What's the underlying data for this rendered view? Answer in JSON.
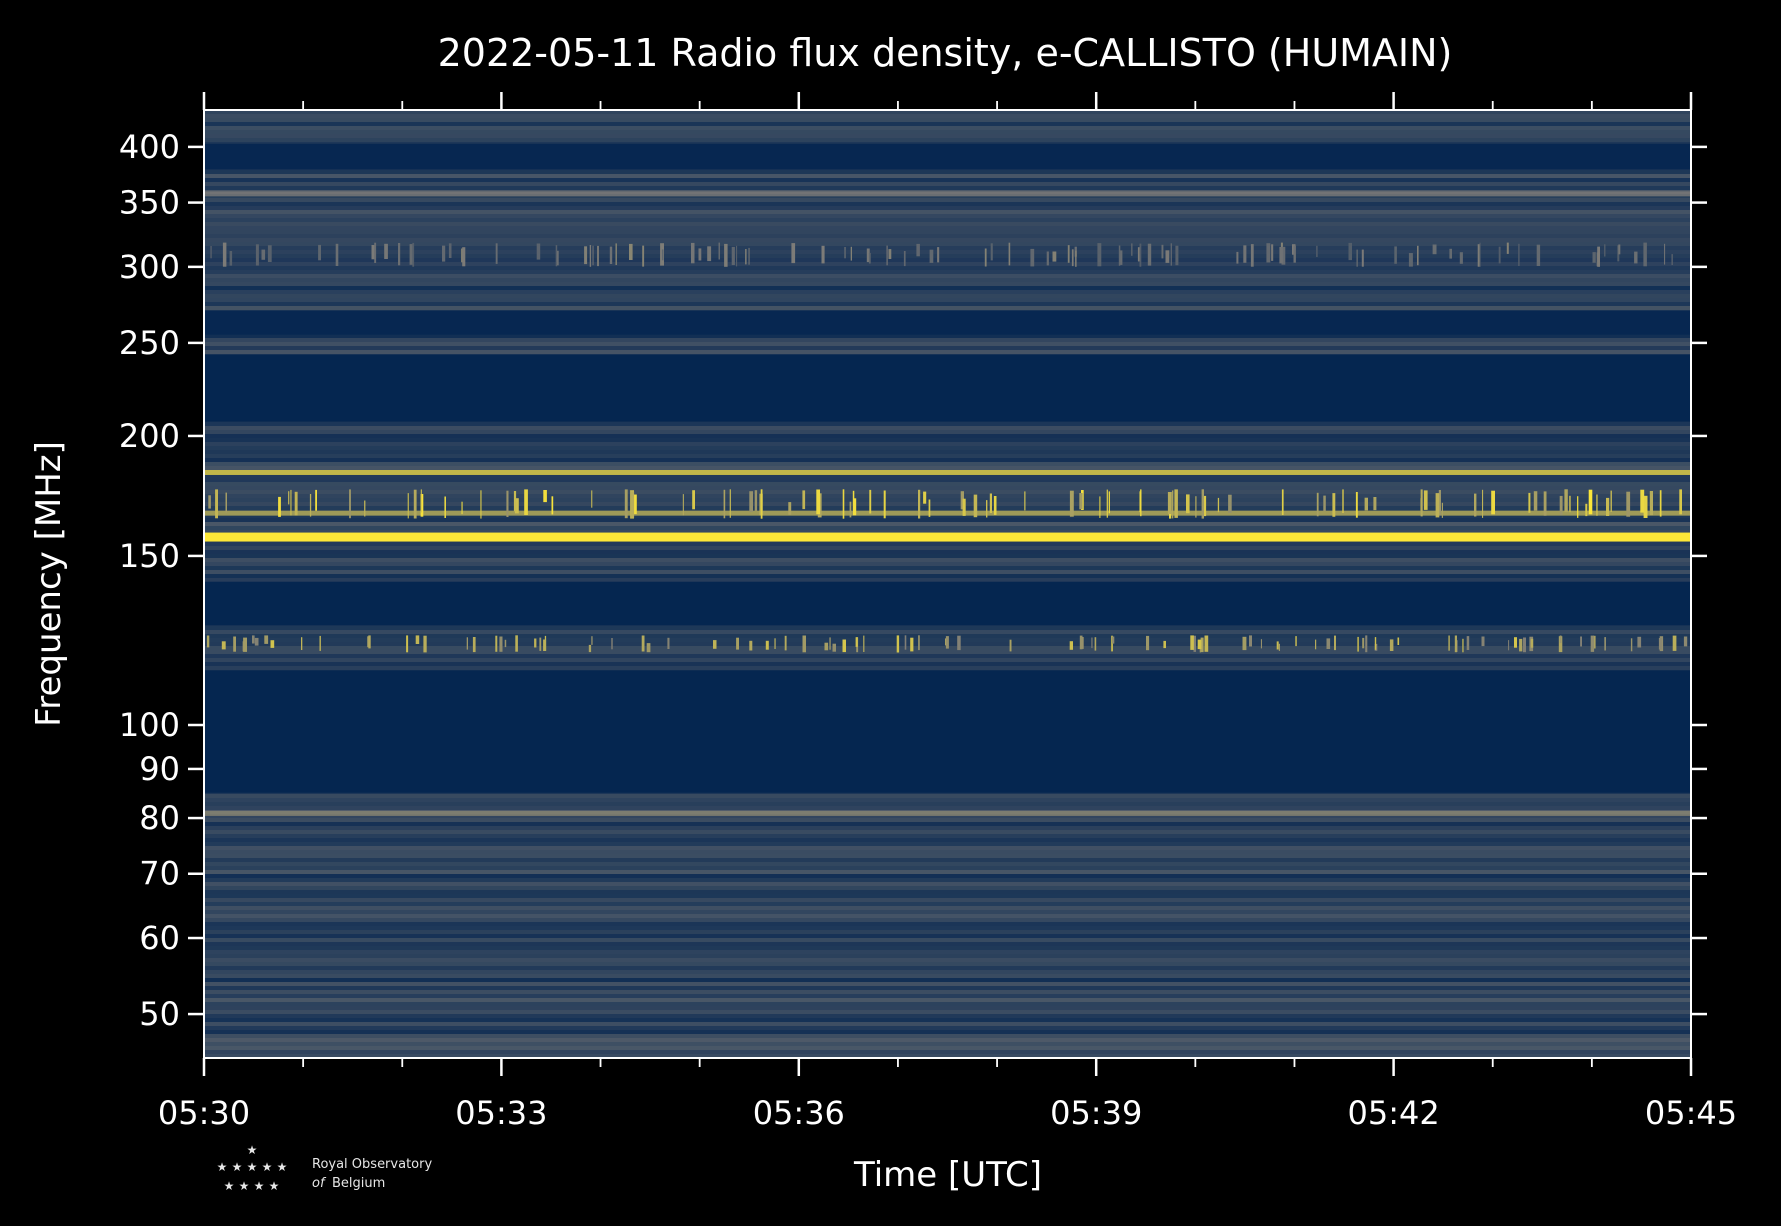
{
  "chart_data": {
    "type": "heatmap",
    "title": "2022-05-11 Radio flux density, e-CALLISTO (HUMAIN)",
    "xlabel": "Time [UTC]",
    "ylabel": "Frequency [MHz]",
    "x_ticks": [
      "05:30",
      "05:33",
      "05:36",
      "05:39",
      "05:42",
      "05:45"
    ],
    "x_range": [
      "05:30",
      "05:45"
    ],
    "y_scale": "log",
    "y_range": [
      45,
      437
    ],
    "y_ticks": [
      50,
      60,
      70,
      80,
      90,
      100,
      150,
      200,
      250,
      300,
      350,
      400
    ],
    "colormap": "cividis",
    "colors": {
      "background": "#000000",
      "low": "#00224e",
      "mid": "#7c7b78",
      "high": "#fee838",
      "text": "#ffffff"
    },
    "features": [
      {
        "type": "band",
        "f_low": 85,
        "f_high": 114,
        "level": 0.02
      },
      {
        "type": "band",
        "f_low": 127,
        "f_high": 141,
        "level": 0.02
      },
      {
        "type": "band",
        "f_low": 207,
        "f_high": 243,
        "level": 0.02
      },
      {
        "type": "band",
        "f_low": 255,
        "f_high": 270,
        "level": 0.03
      },
      {
        "type": "band",
        "f_low": 379,
        "f_high": 403,
        "level": 0.03
      },
      {
        "type": "line",
        "f": 80.8,
        "level": 0.55
      },
      {
        "type": "line",
        "f": 157.5,
        "level": 1.0
      },
      {
        "type": "line",
        "f": 166.0,
        "level": 0.75
      },
      {
        "type": "line",
        "f": 183.0,
        "level": 0.9
      },
      {
        "type": "line",
        "f": 357.0,
        "level": 0.5
      },
      {
        "type": "bursts",
        "f_low": 119,
        "f_high": 124,
        "level": 0.85
      },
      {
        "type": "bursts",
        "f_low": 164,
        "f_high": 176,
        "level": 1.0
      },
      {
        "type": "bursts",
        "f_low": 300,
        "f_high": 318,
        "level": 0.55
      }
    ]
  },
  "logo": {
    "line1": "Royal Observatory",
    "line2_italic": "of",
    "line2_rest": "Belgium",
    "star_icon": "★"
  }
}
